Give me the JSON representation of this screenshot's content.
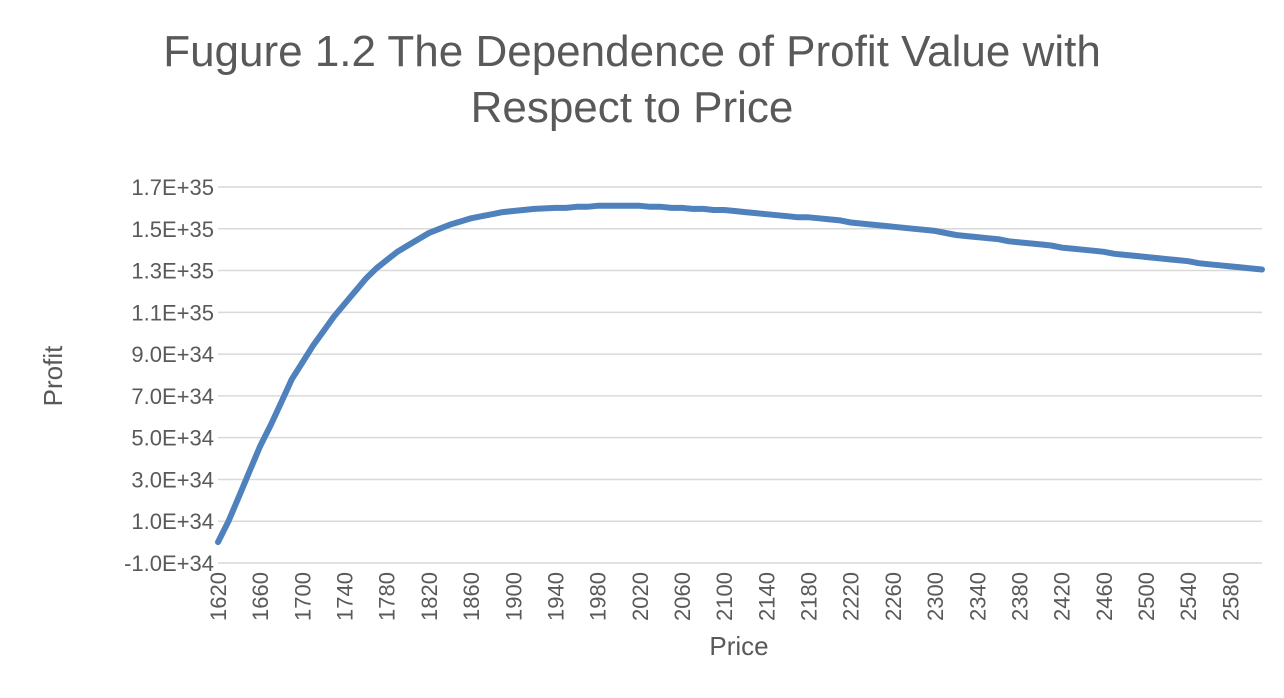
{
  "chart_data": {
    "type": "line",
    "title_line1": "Fugure 1.2 The Dependence of Profit Value with",
    "title_line2": "Respect to Price",
    "xlabel": "Price",
    "ylabel": "Profit",
    "x_tick_labels": [
      "1620",
      "1660",
      "1700",
      "1740",
      "1780",
      "1820",
      "1860",
      "1900",
      "1940",
      "1980",
      "2020",
      "2060",
      "2100",
      "2140",
      "2180",
      "2220",
      "2260",
      "2300",
      "2340",
      "2380",
      "2420",
      "2460",
      "2500",
      "2540",
      "2580"
    ],
    "y_tick_labels": [
      "1.7E+35",
      "1.5E+35",
      "1.3E+35",
      "1.1E+35",
      "9.0E+34",
      "7.0E+34",
      "5.0E+34",
      "3.0E+34",
      "1.0E+34",
      "-1.0E+34"
    ],
    "y_tick_values": [
      1.7e+35,
      1.5e+35,
      1.3e+35,
      1.1e+35,
      9e+34,
      7e+34,
      5e+34,
      3e+34,
      1e+34,
      -1e+34
    ],
    "xlim": [
      1620,
      2610
    ],
    "ylim": [
      -1e+34,
      1.7e+35
    ],
    "grid": true,
    "legend": "none",
    "series": [
      {
        "color": "#4F81BD",
        "x": [
          1620,
          1630,
          1640,
          1650,
          1660,
          1670,
          1680,
          1690,
          1700,
          1710,
          1720,
          1730,
          1740,
          1750,
          1760,
          1770,
          1780,
          1790,
          1800,
          1810,
          1820,
          1830,
          1840,
          1850,
          1860,
          1870,
          1880,
          1890,
          1900,
          1920,
          1940,
          1950,
          1960,
          1970,
          1980,
          1990,
          2000,
          2010,
          2020,
          2030,
          2040,
          2050,
          2060,
          2070,
          2080,
          2090,
          2100,
          2110,
          2120,
          2130,
          2140,
          2150,
          2160,
          2170,
          2180,
          2190,
          2200,
          2210,
          2220,
          2240,
          2260,
          2280,
          2300,
          2310,
          2320,
          2330,
          2340,
          2350,
          2360,
          2370,
          2380,
          2390,
          2400,
          2410,
          2420,
          2430,
          2440,
          2450,
          2460,
          2470,
          2480,
          2490,
          2500,
          2510,
          2520,
          2530,
          2540,
          2550,
          2560,
          2570,
          2580,
          2590,
          2600,
          2610
        ],
        "y": [
          0.0,
          1e+34,
          2.2e+34,
          3.4e+34,
          4.6e+34,
          5.6e+34,
          6.7e+34,
          7.8e+34,
          8.6e+34,
          9.4e+34,
          1.01e+35,
          1.08e+35,
          1.14e+35,
          1.2e+35,
          1.26e+35,
          1.31e+35,
          1.35e+35,
          1.39e+35,
          1.42e+35,
          1.45e+35,
          1.48e+35,
          1.5e+35,
          1.52e+35,
          1.535e+35,
          1.55e+35,
          1.56e+35,
          1.57e+35,
          1.58e+35,
          1.585e+35,
          1.595e+35,
          1.6e+35,
          1.6e+35,
          1.605e+35,
          1.605e+35,
          1.61e+35,
          1.61e+35,
          1.61e+35,
          1.61e+35,
          1.61e+35,
          1.605e+35,
          1.605e+35,
          1.6e+35,
          1.6e+35,
          1.595e+35,
          1.595e+35,
          1.59e+35,
          1.59e+35,
          1.585e+35,
          1.58e+35,
          1.575e+35,
          1.57e+35,
          1.565e+35,
          1.56e+35,
          1.555e+35,
          1.555e+35,
          1.55e+35,
          1.545e+35,
          1.54e+35,
          1.53e+35,
          1.52e+35,
          1.51e+35,
          1.5e+35,
          1.49e+35,
          1.48e+35,
          1.47e+35,
          1.465e+35,
          1.46e+35,
          1.455e+35,
          1.45e+35,
          1.44e+35,
          1.435e+35,
          1.43e+35,
          1.425e+35,
          1.42e+35,
          1.41e+35,
          1.405e+35,
          1.4e+35,
          1.395e+35,
          1.39e+35,
          1.38e+35,
          1.375e+35,
          1.37e+35,
          1.365e+35,
          1.36e+35,
          1.355e+35,
          1.35e+35,
          1.345e+35,
          1.335e+35,
          1.33e+35,
          1.325e+35,
          1.32e+35,
          1.315e+35,
          1.31e+35,
          1.305e+35
        ]
      }
    ]
  }
}
